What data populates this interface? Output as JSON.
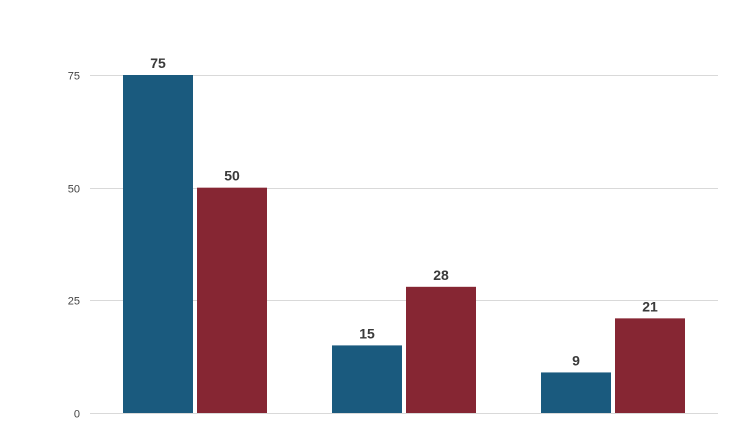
{
  "chart_data": {
    "type": "bar",
    "title": "",
    "xlabel": "",
    "ylabel": "",
    "categories": [
      "",
      "",
      ""
    ],
    "series": [
      {
        "values": [
          75,
          15,
          9
        ],
        "color": "#1a5a7e"
      },
      {
        "values": [
          50,
          28,
          21
        ],
        "color": "#862633"
      }
    ],
    "ylim": [
      0,
      75
    ],
    "yticks": [
      0,
      25,
      50,
      75
    ],
    "grid": true,
    "legend": "none"
  }
}
